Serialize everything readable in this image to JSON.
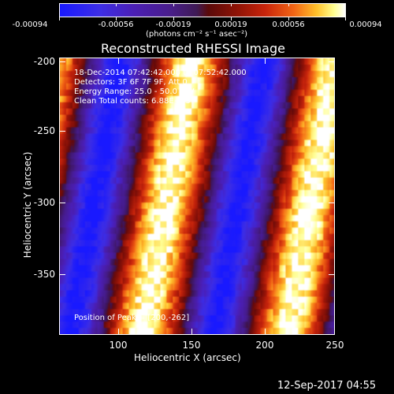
{
  "colorbar": {
    "tick_labels": [
      "-0.00094",
      "-0.00056",
      "-0.00019",
      "0.00019",
      "0.00056",
      "0.00094"
    ],
    "units_label": "(photons cm⁻² s⁻¹ asec⁻²)"
  },
  "title": "Reconstructed RHESSI Image",
  "info": {
    "time_range": "18-Dec-2014 07:42:42.000 to 07:52:42.000",
    "detectors": "Detectors: 3F 6F 7F 9F, Att 0",
    "energy_range": "Energy Range: 25.0 - 50.0 keV",
    "clean": "Clean   Total counts: 6.88E+03",
    "peak": "Position of Peak = [200,-262]"
  },
  "axes": {
    "xlabel": "Heliocentric X (arcsec)",
    "ylabel": "Heliocentric Y (arcsec)",
    "xticks": [
      "100",
      "150",
      "200",
      "250"
    ],
    "yticks": [
      "-200",
      "-250",
      "-300",
      "-350"
    ]
  },
  "footer_timestamp": "12-Sep-2017 04:55",
  "colors": {
    "background": "#000000",
    "text": "#ffffff"
  }
}
